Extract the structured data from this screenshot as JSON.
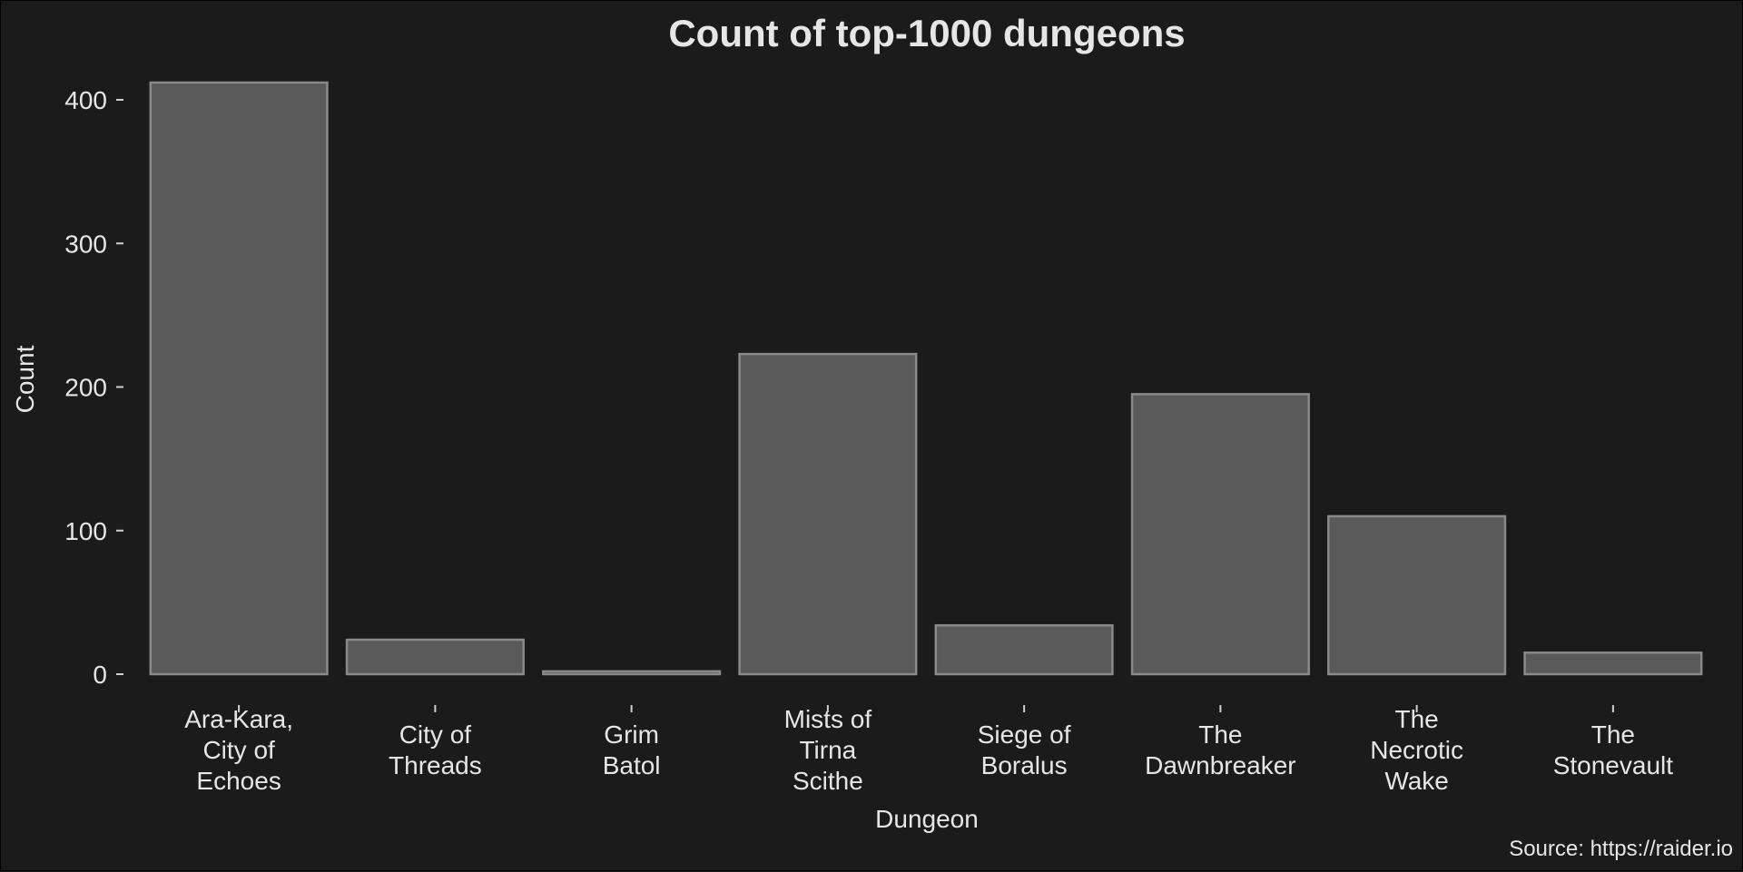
{
  "chart_data": {
    "type": "bar",
    "title": "Count of top-1000 dungeons",
    "xlabel": "Dungeon",
    "ylabel": "Count",
    "caption": "Source: https://raider.io",
    "categories": [
      [
        "Ara-Kara,",
        "City of",
        "Echoes"
      ],
      [
        "City of",
        "Threads"
      ],
      [
        "Grim",
        "Batol"
      ],
      [
        "Mists of",
        "Tirna",
        "Scithe"
      ],
      [
        "Siege of",
        "Boralus"
      ],
      [
        "The",
        "Dawnbreaker"
      ],
      [
        "The",
        "Necrotic",
        "Wake"
      ],
      [
        "The",
        "Stonevault"
      ]
    ],
    "values": [
      412,
      24,
      2,
      223,
      34,
      195,
      110,
      15
    ],
    "ylim": [
      0,
      425
    ],
    "yticks": [
      0,
      100,
      200,
      300,
      400
    ],
    "grid": false,
    "colors": {
      "background": "#1b1b1b",
      "bar_fill": "#5a5a5a",
      "bar_stroke": "#8a8a8a",
      "text": "#e6e6e6"
    }
  }
}
